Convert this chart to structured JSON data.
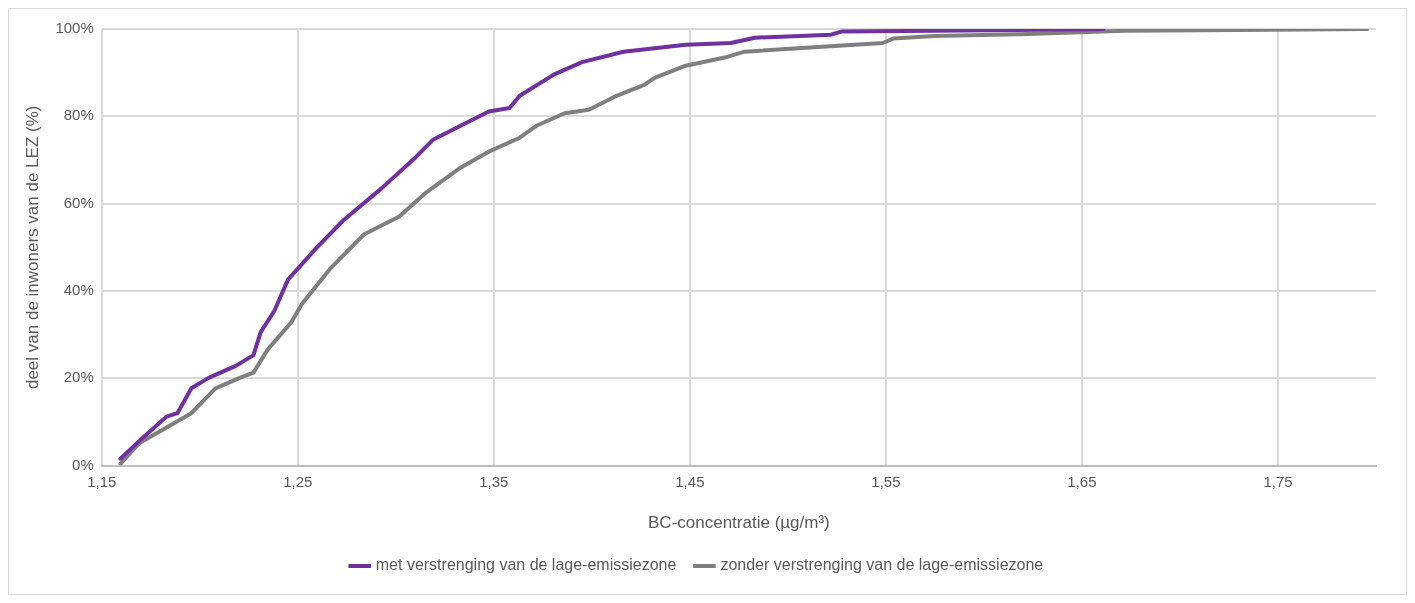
{
  "chart_data": {
    "type": "line",
    "xlabel": "BC-concentratie (µg/m³)",
    "ylabel": "deel van de inwoners van de LEZ (%)",
    "xlim": [
      1.15,
      1.8
    ],
    "xticks": [
      {
        "value": 1.15,
        "label": "1,15"
      },
      {
        "value": 1.25,
        "label": "1,25"
      },
      {
        "value": 1.35,
        "label": "1,35"
      },
      {
        "value": 1.45,
        "label": "1,45"
      },
      {
        "value": 1.55,
        "label": "1,55"
      },
      {
        "value": 1.65,
        "label": "1,65"
      },
      {
        "value": 1.75,
        "label": "1,75"
      }
    ],
    "ylim": [
      0,
      100
    ],
    "yticks": [
      {
        "value": 0,
        "label": "0%"
      },
      {
        "value": 20,
        "label": "20%"
      },
      {
        "value": 40,
        "label": "40%"
      },
      {
        "value": 60,
        "label": "60%"
      },
      {
        "value": 80,
        "label": "80%"
      },
      {
        "value": 100,
        "label": "100%"
      }
    ],
    "grid": true,
    "legend": "bottom",
    "marker": "none",
    "line_style": "solid",
    "series": [
      {
        "name": "met verstrenging van de lage-emissiezone",
        "color": "#7030a0",
        "x": [
          1.1595,
          1.171,
          1.183,
          1.1886,
          1.1957,
          1.2045,
          1.2186,
          1.2274,
          1.231,
          1.238,
          1.245,
          1.2594,
          1.2733,
          1.2927,
          1.3103,
          1.3192,
          1.3333,
          1.3474,
          1.358,
          1.3632,
          1.3808,
          1.395,
          1.4161,
          1.4479,
          1.4708,
          1.4832,
          1.522,
          1.5272,
          1.5749,
          1.661
        ],
        "values": [
          1.6,
          6.4,
          11.2,
          12,
          17.7,
          20.1,
          22.9,
          25.3,
          30.5,
          35.4,
          42.6,
          49.8,
          56.2,
          63.5,
          70.7,
          74.7,
          77.9,
          81.1,
          81.9,
          84.7,
          89.6,
          92.4,
          94.8,
          96.4,
          96.8,
          98,
          98.7,
          99.4,
          99.6,
          100
        ]
      },
      {
        "name": "zonder verstrenging van de lage-emissiezone",
        "color": "#7f7f7f",
        "x": [
          1.1595,
          1.1692,
          1.1833,
          1.1957,
          1.208,
          1.2204,
          1.2274,
          1.2345,
          1.2468,
          1.2521,
          1.2663,
          1.2839,
          1.3016,
          1.3156,
          1.3332,
          1.3474,
          1.3632,
          1.372,
          1.3861,
          1.3985,
          1.4126,
          1.4267,
          1.432,
          1.4479,
          1.469,
          1.4779,
          1.5484,
          1.5537,
          1.5749,
          1.6188,
          1.6717,
          1.7955
        ],
        "values": [
          0.4,
          5.2,
          8.8,
          12,
          17.7,
          20.1,
          21.3,
          26.5,
          32.9,
          37,
          45,
          53,
          57,
          62.6,
          68.3,
          71.9,
          75.1,
          77.9,
          80.7,
          81.5,
          84.7,
          87.2,
          88.8,
          91.6,
          93.6,
          94.8,
          96.8,
          97.8,
          98.4,
          98.8,
          99.6,
          100
        ]
      }
    ]
  }
}
